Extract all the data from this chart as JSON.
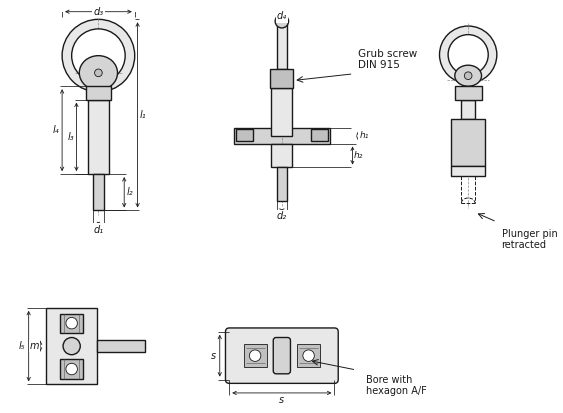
{
  "bg_color": "#ffffff",
  "lc": "#1a1a1a",
  "gray1": "#d4d4d4",
  "gray2": "#e8e8e8",
  "gray3": "#c0c0c0",
  "gray4": "#b8b8b8",
  "dim_c": "#1a1a1a",
  "dash_c": "#888888",
  "hatch_c": "#666666",
  "annotations": {
    "grub_screw": "Grub screw\nDIN 915",
    "plunger_pin": "Plunger pin\nretracted",
    "bore": "Bore with\nhexagon A/F"
  },
  "dims": {
    "d1": "d₁",
    "d2": "d₂",
    "d3": "d₃",
    "d4": "d₄",
    "l1": "l₁",
    "l2": "l₂",
    "l3": "l₃",
    "l4": "l₄",
    "l5": "l₅",
    "h1": "h₁",
    "h2": "h₂",
    "m": "m",
    "s": "s"
  }
}
